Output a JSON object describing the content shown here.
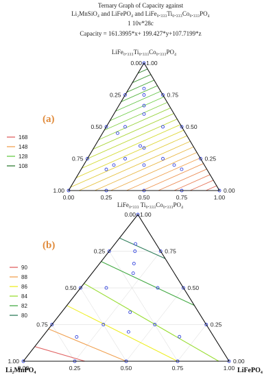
{
  "chart_data": [
    {
      "type": "ternary-contour",
      "panel_label": "(a)",
      "title_lines": [
        "Ternary Graph of Capacity against",
        "Li₂MnSiO₄  and LiFePO₄  and LiFe₀.₃₃₃Ti₀.₃₃₃Co₀.₃₃₃PO₄",
        "1 10v*28c",
        "Capacity  = 161.3995*x+ 199.427*y+107.7199*z"
      ],
      "apex_label": "LiFe₀.₃₃₃Ti₀.₃₃₃Co₀.₃₃₃PO₄",
      "left_label": "",
      "right_label": "",
      "bottom_ticks": [
        "0.00",
        "0.25",
        "0.50",
        "0.75",
        "1.00"
      ],
      "left_ticks": [
        "1.00",
        "0.75",
        "0.50",
        "0.25",
        "0.00"
      ],
      "right_ticks": [
        "0.00",
        "0.25",
        "0.50",
        "0.75",
        "1.00"
      ],
      "apex_tick_left": "0.00",
      "apex_tick_right": "1.00",
      "equation": {
        "x": 161.3995,
        "y": 199.427,
        "z": 107.7199
      },
      "legend": [
        {
          "label": "168",
          "color": "#e06060"
        },
        {
          "label": "148",
          "color": "#f0a050"
        },
        {
          "label": "128",
          "color": "#66cc44"
        },
        {
          "label": "108",
          "color": "#2e7d32"
        }
      ],
      "contour_levels": [
        112,
        116,
        120,
        124,
        128,
        132,
        136,
        140,
        144,
        148,
        152,
        156,
        160,
        164,
        168,
        172,
        176,
        180,
        184,
        188,
        192,
        196
      ],
      "contour_min": 108,
      "contour_max": 199.4,
      "design_points": [
        [
          0.0,
          0.0,
          1.0
        ],
        [
          0.0,
          1.0,
          0.0
        ],
        [
          1.0,
          0.0,
          0.0
        ],
        [
          0.5,
          0.5,
          0.0
        ],
        [
          0.5,
          0.0,
          0.5
        ],
        [
          0.0,
          0.5,
          0.5
        ],
        [
          0.333,
          0.333,
          0.334
        ],
        [
          0.25,
          0.75,
          0.0
        ],
        [
          0.75,
          0.25,
          0.0
        ],
        [
          0.25,
          0.0,
          0.75
        ],
        [
          0.75,
          0.0,
          0.25
        ],
        [
          0.0,
          0.25,
          0.75
        ],
        [
          0.0,
          0.75,
          0.25
        ],
        [
          0.167,
          0.167,
          0.666
        ],
        [
          0.667,
          0.167,
          0.166
        ],
        [
          0.167,
          0.666,
          0.167
        ],
        [
          0.125,
          0.125,
          0.75
        ],
        [
          0.125,
          0.375,
          0.5
        ],
        [
          0.375,
          0.125,
          0.5
        ],
        [
          0.4,
          0.4,
          0.2
        ],
        [
          0.2,
          0.2,
          0.6
        ],
        [
          0.5,
          0.25,
          0.25
        ],
        [
          0.25,
          0.5,
          0.25
        ],
        [
          0.1,
          0.1,
          0.8
        ],
        [
          0.6,
          0.2,
          0.2
        ],
        [
          0.2,
          0.6,
          0.2
        ],
        [
          0.35,
          0.3,
          0.35
        ],
        [
          0.45,
          0.1,
          0.45
        ]
      ]
    },
    {
      "type": "ternary-contour",
      "panel_label": "(b)",
      "title_lines": [],
      "apex_label": "LiFe₀.₃₃₃ Ti₀.₃₃₃Co₀.₃₃₃PO₄",
      "left_label": "Li₂MnPO₄",
      "right_label": "LiFePO₄",
      "bottom_ticks": [
        "0.00",
        "0.25",
        "0.50",
        "0.75",
        "1.00"
      ],
      "left_ticks": [
        "1.00",
        "0.75",
        "0.50",
        "0.25",
        "0.00"
      ],
      "right_ticks": [
        "0.00",
        "0.25",
        "0.50",
        "0.75",
        "1.00"
      ],
      "apex_tick_left": "0.00",
      "apex_tick_right": "1.00",
      "legend": [
        {
          "label": "90",
          "color": "#e06060"
        },
        {
          "label": "88",
          "color": "#f0a050"
        },
        {
          "label": "86",
          "color": "#eeee22"
        },
        {
          "label": "84",
          "color": "#99dd33"
        },
        {
          "label": "82",
          "color": "#44aa44"
        },
        {
          "label": "80",
          "color": "#2e7d5a"
        }
      ],
      "contour_lines": [
        {
          "level": 90,
          "color": "#e06060",
          "from": [
            0.9,
            0.0,
            0.1
          ],
          "to": [
            0.7,
            0.3,
            0.0
          ]
        },
        {
          "level": 88,
          "color": "#f0a050",
          "from": [
            0.78,
            0.0,
            0.22
          ],
          "to": [
            0.5,
            0.5,
            0.0
          ]
        },
        {
          "level": 86,
          "color": "#eeee22",
          "from": [
            0.62,
            0.0,
            0.38
          ],
          "to": [
            0.25,
            0.75,
            0.0
          ]
        },
        {
          "level": 84,
          "color": "#99dd33",
          "from": [
            0.47,
            0.0,
            0.53
          ],
          "to": [
            0.05,
            0.95,
            0.0
          ]
        },
        {
          "level": 82,
          "color": "#44aa44",
          "from": [
            0.32,
            0.0,
            0.68
          ],
          "to": [
            0.0,
            0.62,
            0.38
          ]
        },
        {
          "level": 80,
          "color": "#2e7d5a",
          "from": [
            0.16,
            0.0,
            0.84
          ],
          "to": [
            0.0,
            0.3,
            0.7
          ]
        }
      ],
      "design_points": [
        [
          0.0,
          0.0,
          1.0
        ],
        [
          0.0,
          1.0,
          0.0
        ],
        [
          1.0,
          0.0,
          0.0
        ],
        [
          0.5,
          0.5,
          0.0
        ],
        [
          0.5,
          0.0,
          0.5
        ],
        [
          0.0,
          0.5,
          0.5
        ],
        [
          0.333,
          0.333,
          0.334
        ],
        [
          0.25,
          0.75,
          0.0
        ],
        [
          0.75,
          0.25,
          0.0
        ],
        [
          0.25,
          0.0,
          0.75
        ],
        [
          0.75,
          0.0,
          0.25
        ],
        [
          0.0,
          0.25,
          0.75
        ],
        [
          0.0,
          0.75,
          0.25
        ],
        [
          0.167,
          0.167,
          0.666
        ],
        [
          0.667,
          0.167,
          0.166
        ],
        [
          0.167,
          0.666,
          0.167
        ],
        [
          0.125,
          0.125,
          0.75
        ],
        [
          0.125,
          0.375,
          0.5
        ],
        [
          0.375,
          0.125,
          0.5
        ],
        [
          0.4,
          0.4,
          0.2
        ],
        [
          0.2,
          0.2,
          0.6
        ],
        [
          0.5,
          0.25,
          0.25
        ],
        [
          0.25,
          0.5,
          0.25
        ],
        [
          0.1,
          0.1,
          0.8
        ]
      ]
    }
  ]
}
